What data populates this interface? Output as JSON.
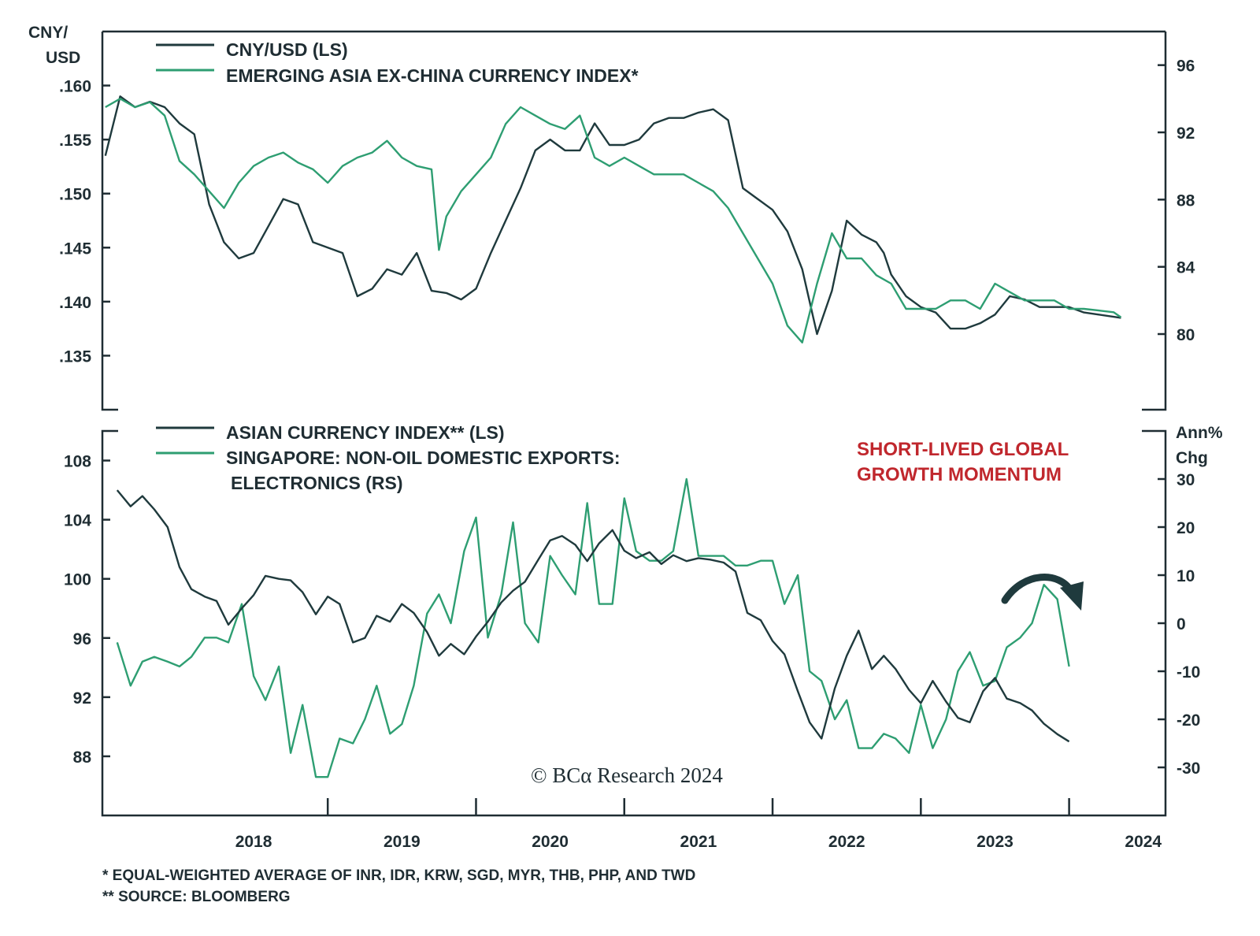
{
  "colors": {
    "dark": "#1f3a3d",
    "green": "#2e9e72",
    "axis": "#1f2d33",
    "annotation": "#c0272d"
  },
  "x_axis": {
    "tick_labels": [
      "2018",
      "2019",
      "2020",
      "2021",
      "2022",
      "2023",
      "2024"
    ]
  },
  "footnotes": [
    "* EQUAL-WEIGHTED AVERAGE OF INR, IDR, KRW, SGD, MYR, THB, PHP, AND TWD",
    "** SOURCE: BLOOMBERG"
  ],
  "credit": "© BCα Research 2024",
  "chart_data": [
    {
      "type": "line",
      "panel": "top",
      "left_axis_title": [
        "CNY/",
        "USD"
      ],
      "right_axis_title": [],
      "left_ylim": [
        0.13,
        0.165
      ],
      "right_ylim": [
        75.5,
        98
      ],
      "left_ticks": [
        ".160",
        ".155",
        ".150",
        ".145",
        ".140",
        ".135"
      ],
      "left_tick_values": [
        0.16,
        0.155,
        0.15,
        0.145,
        0.14,
        0.135
      ],
      "right_ticks": [
        "96",
        "92",
        "88",
        "84",
        "80"
      ],
      "right_tick_values": [
        96,
        92,
        88,
        84,
        80
      ],
      "legend_placement": "top-left",
      "series": [
        {
          "name": "CNY/USD (LS)",
          "axis": "left",
          "color_key": "dark",
          "x": [
            2017.5,
            2017.6,
            2017.7,
            2017.8,
            2017.9,
            2018.0,
            2018.1,
            2018.2,
            2018.3,
            2018.4,
            2018.5,
            2018.6,
            2018.7,
            2018.8,
            2018.9,
            2019.0,
            2019.1,
            2019.2,
            2019.3,
            2019.4,
            2019.5,
            2019.6,
            2019.7,
            2019.8,
            2019.9,
            2020.0,
            2020.1,
            2020.2,
            2020.3,
            2020.4,
            2020.5,
            2020.6,
            2020.7,
            2020.8,
            2020.9,
            2021.0,
            2021.1,
            2021.2,
            2021.3,
            2021.4,
            2021.5,
            2021.6,
            2021.7,
            2021.8,
            2021.9,
            2022.0,
            2022.1,
            2022.2,
            2022.3,
            2022.4,
            2022.5,
            2022.6,
            2022.7,
            2022.75,
            2022.8,
            2022.9,
            2023.0,
            2023.1,
            2023.2,
            2023.3,
            2023.4,
            2023.5,
            2023.6,
            2023.7,
            2023.8,
            2023.9,
            2024.0,
            2024.1,
            2024.2,
            2024.3,
            2024.35
          ],
          "values": [
            0.1535,
            0.159,
            0.158,
            0.1585,
            0.158,
            0.1565,
            0.1555,
            0.149,
            0.1455,
            0.144,
            0.1445,
            0.147,
            0.1495,
            0.149,
            0.1455,
            0.145,
            0.1445,
            0.1405,
            0.1412,
            0.143,
            0.1425,
            0.1445,
            0.141,
            0.1408,
            0.1402,
            0.1412,
            0.1445,
            0.1475,
            0.1505,
            0.154,
            0.155,
            0.154,
            0.154,
            0.1565,
            0.1545,
            0.1545,
            0.155,
            0.1565,
            0.157,
            0.157,
            0.1575,
            0.1578,
            0.1568,
            0.1505,
            0.1495,
            0.1485,
            0.1465,
            0.143,
            0.137,
            0.141,
            0.1475,
            0.1462,
            0.1455,
            0.1445,
            0.1425,
            0.1405,
            0.1395,
            0.139,
            0.1375,
            0.1375,
            0.138,
            0.1388,
            0.1405,
            0.1402,
            0.1395,
            0.1395,
            0.1395,
            0.139,
            0.1388,
            0.1386,
            0.1385
          ]
        },
        {
          "name": "EMERGING ASIA EX-CHINA CURRENCY INDEX*",
          "axis": "right",
          "color_key": "green",
          "x": [
            2017.5,
            2017.6,
            2017.7,
            2017.8,
            2017.9,
            2018.0,
            2018.1,
            2018.2,
            2018.3,
            2018.4,
            2018.5,
            2018.6,
            2018.7,
            2018.8,
            2018.9,
            2019.0,
            2019.1,
            2019.2,
            2019.3,
            2019.4,
            2019.5,
            2019.6,
            2019.7,
            2019.75,
            2019.8,
            2019.9,
            2020.0,
            2020.1,
            2020.2,
            2020.3,
            2020.4,
            2020.5,
            2020.6,
            2020.7,
            2020.8,
            2020.9,
            2021.0,
            2021.1,
            2021.2,
            2021.3,
            2021.4,
            2021.5,
            2021.6,
            2021.7,
            2021.8,
            2021.9,
            2022.0,
            2022.1,
            2022.2,
            2022.3,
            2022.4,
            2022.5,
            2022.6,
            2022.7,
            2022.8,
            2022.9,
            2023.0,
            2023.1,
            2023.2,
            2023.3,
            2023.4,
            2023.5,
            2023.6,
            2023.7,
            2023.8,
            2023.9,
            2024.0,
            2024.1,
            2024.2,
            2024.3,
            2024.35
          ],
          "values": [
            93.5,
            94,
            93.5,
            93.8,
            93,
            90.3,
            89.5,
            88.5,
            87.5,
            89,
            90,
            90.5,
            90.8,
            90.2,
            89.8,
            89,
            90,
            90.5,
            90.8,
            91.5,
            90.5,
            90,
            89.8,
            85,
            87,
            88.5,
            89.5,
            90.5,
            92.5,
            93.5,
            93,
            92.5,
            92.2,
            93,
            90.5,
            90,
            90.5,
            90,
            89.5,
            89.5,
            89.5,
            89,
            88.5,
            87.5,
            86,
            84.5,
            83,
            80.5,
            79.5,
            83,
            86,
            84.5,
            84.5,
            83.5,
            83,
            81.5,
            81.5,
            81.5,
            82,
            82,
            81.5,
            83,
            82.5,
            82,
            82,
            82,
            81.5,
            81.5,
            81.4,
            81.3,
            81
          ]
        }
      ]
    },
    {
      "type": "line",
      "panel": "bottom",
      "left_axis_title": [],
      "right_axis_title": [
        "Ann%",
        "Chg"
      ],
      "left_ylim": [
        84,
        110
      ],
      "right_ylim": [
        -40,
        40
      ],
      "left_ticks": [
        "108",
        "104",
        "100",
        "96",
        "92",
        "88"
      ],
      "left_tick_values": [
        108,
        104,
        100,
        96,
        92,
        88
      ],
      "right_ticks": [
        "30",
        "20",
        "10",
        "0",
        "-10",
        "-20",
        "-30"
      ],
      "right_tick_values": [
        30,
        20,
        10,
        0,
        -10,
        -20,
        -30
      ],
      "legend_placement": "top-left",
      "annotation": [
        "SHORT-LIVED GLOBAL",
        "GROWTH MOMENTUM"
      ],
      "series": [
        {
          "name": "ASIAN CURRENCY INDEX** (LS)",
          "axis": "left",
          "color_key": "dark",
          "x": [
            2017.58,
            2017.67,
            2017.75,
            2017.83,
            2017.92,
            2018.0,
            2018.08,
            2018.17,
            2018.25,
            2018.33,
            2018.42,
            2018.5,
            2018.58,
            2018.67,
            2018.75,
            2018.83,
            2018.92,
            2019.0,
            2019.08,
            2019.17,
            2019.25,
            2019.33,
            2019.42,
            2019.5,
            2019.58,
            2019.67,
            2019.75,
            2019.83,
            2019.92,
            2020.0,
            2020.08,
            2020.17,
            2020.25,
            2020.33,
            2020.42,
            2020.5,
            2020.58,
            2020.67,
            2020.75,
            2020.83,
            2020.92,
            2021.0,
            2021.08,
            2021.17,
            2021.25,
            2021.33,
            2021.42,
            2021.5,
            2021.58,
            2021.67,
            2021.75,
            2021.83,
            2021.92,
            2022.0,
            2022.08,
            2022.17,
            2022.25,
            2022.33,
            2022.42,
            2022.5,
            2022.58,
            2022.67,
            2022.75,
            2022.83,
            2022.92,
            2023.0,
            2023.08,
            2023.17,
            2023.25,
            2023.33,
            2023.42,
            2023.5,
            2023.58,
            2023.67,
            2023.75,
            2023.83,
            2023.92,
            2024.0
          ],
          "values": [
            106,
            104.9,
            105.6,
            104.7,
            103.5,
            100.8,
            99.3,
            98.8,
            98.5,
            96.9,
            98,
            98.9,
            100.2,
            100,
            99.9,
            99.1,
            97.6,
            98.8,
            98.3,
            95.7,
            96,
            97.5,
            97.1,
            98.3,
            97.7,
            96.4,
            94.8,
            95.6,
            94.9,
            96.1,
            97.1,
            98.4,
            99.2,
            99.8,
            101.3,
            102.6,
            102.9,
            102.3,
            101.2,
            102.4,
            103.3,
            101.9,
            101.4,
            101.8,
            101,
            101.6,
            101.2,
            101.4,
            101.3,
            101.1,
            100.5,
            97.7,
            97.2,
            95.8,
            94.9,
            92.4,
            90.3,
            89.2,
            92.6,
            94.8,
            96.5,
            93.9,
            94.8,
            93.9,
            92.5,
            91.6,
            93.1,
            91.7,
            90.6,
            90.3,
            92.4,
            93.3,
            91.9,
            91.6,
            91.1,
            90.2,
            89.5,
            89
          ]
        },
        {
          "name": "SINGAPORE: NON-OIL DOMESTIC EXPORTS:",
          "name_line2": "ELECTRONICS (RS)",
          "axis": "right",
          "color_key": "green",
          "x": [
            2017.58,
            2017.67,
            2017.75,
            2017.83,
            2017.92,
            2018.0,
            2018.08,
            2018.17,
            2018.25,
            2018.33,
            2018.42,
            2018.5,
            2018.58,
            2018.67,
            2018.75,
            2018.83,
            2018.92,
            2019.0,
            2019.08,
            2019.17,
            2019.25,
            2019.33,
            2019.42,
            2019.5,
            2019.58,
            2019.67,
            2019.75,
            2019.83,
            2019.92,
            2020.0,
            2020.08,
            2020.17,
            2020.25,
            2020.33,
            2020.42,
            2020.5,
            2020.58,
            2020.67,
            2020.75,
            2020.83,
            2020.92,
            2021.0,
            2021.08,
            2021.17,
            2021.25,
            2021.33,
            2021.42,
            2021.5,
            2021.58,
            2021.67,
            2021.75,
            2021.83,
            2021.92,
            2022.0,
            2022.08,
            2022.17,
            2022.25,
            2022.33,
            2022.42,
            2022.5,
            2022.58,
            2022.67,
            2022.75,
            2022.83,
            2022.92,
            2023.0,
            2023.08,
            2023.17,
            2023.25,
            2023.33,
            2023.42,
            2023.5,
            2023.58,
            2023.67,
            2023.75,
            2023.83,
            2023.92,
            2024.0
          ],
          "values": [
            -4,
            -13,
            -8,
            -7,
            -8,
            -9,
            -7,
            -3,
            -3,
            -4,
            4,
            -11,
            -16,
            -9,
            -27,
            -17,
            -32,
            -32,
            -24,
            -25,
            -20,
            -13,
            -23,
            -21,
            -13,
            2,
            6,
            0,
            15,
            22,
            -3,
            6,
            21,
            0,
            -4,
            14,
            10,
            6,
            25,
            4,
            4,
            26,
            15,
            13,
            13,
            15,
            30,
            14,
            14,
            14,
            12,
            12,
            13,
            13,
            4,
            10,
            -10,
            -12,
            -20,
            -16,
            -26,
            -26,
            -23,
            -24,
            -27,
            -17,
            -26,
            -20,
            -10,
            -6,
            -13,
            -12,
            -5,
            -3,
            0,
            8,
            5,
            -9
          ]
        }
      ]
    }
  ]
}
